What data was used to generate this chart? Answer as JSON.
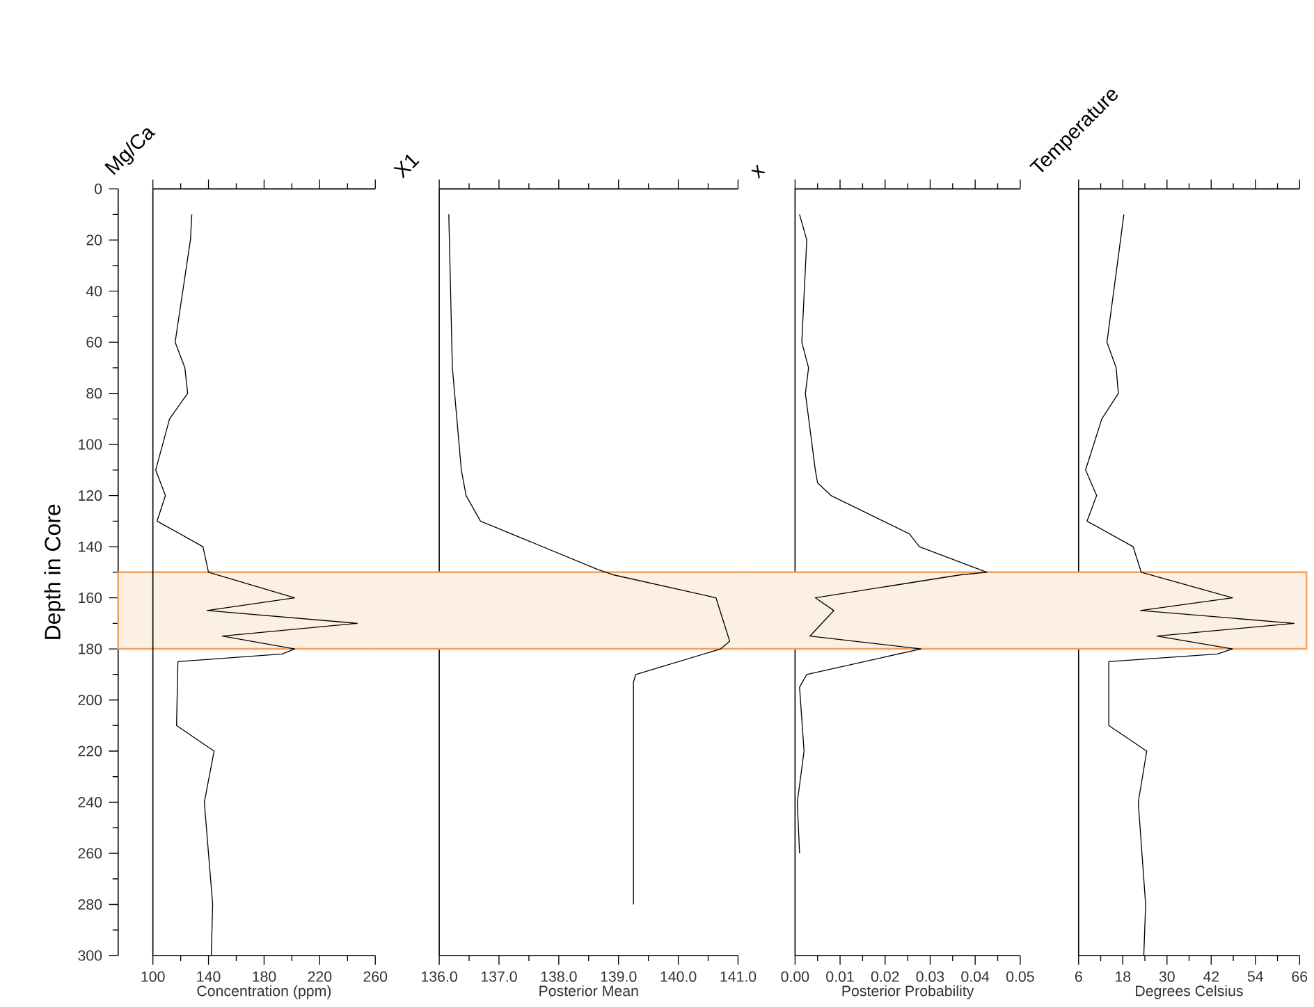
{
  "chart_data": [
    {
      "type": "line",
      "title": "Mg/Ca",
      "xlabel": "Concentration (ppm)",
      "ylabel": "Depth in Core",
      "xlim": [
        100,
        260
      ],
      "xticks": [
        100,
        140,
        180,
        220,
        260
      ],
      "ylim": [
        300,
        0
      ],
      "yticks": [
        0,
        20,
        40,
        60,
        80,
        100,
        120,
        140,
        160,
        180,
        200,
        220,
        240,
        260,
        280,
        300
      ],
      "series": [
        {
          "color": "#000000",
          "x": [
            128,
            127,
            116,
            123,
            125,
            112,
            102,
            109,
            103,
            136,
            140,
            202,
            139,
            247,
            150,
            202,
            193,
            118,
            117,
            144,
            137,
            143,
            142
          ],
          "values": [
            10,
            20,
            60,
            70,
            80,
            90,
            110,
            120,
            130,
            140,
            150,
            160,
            165,
            170,
            175,
            180,
            182,
            185,
            210,
            220,
            240,
            280,
            300
          ]
        }
      ],
      "bands": [
        {
          "axis": "y",
          "from": 150,
          "to": 180,
          "color": "#fcefe4"
        }
      ]
    },
    {
      "type": "line",
      "title": "X1",
      "xlabel": "Posterior Mean",
      "tick_labels": "x",
      "xlim": [
        136,
        141
      ],
      "xticks": [
        {
          "value": 136,
          "label": "136.0"
        },
        {
          "value": 137,
          "label": "137.0"
        },
        {
          "value": 138,
          "label": "138.0"
        },
        {
          "value": 139,
          "label": "139.0"
        },
        {
          "value": 140,
          "label": "140.0"
        },
        {
          "value": 141,
          "label": "141.0"
        }
      ],
      "ylim": [
        300,
        0
      ],
      "yticks": [
        0,
        20,
        40,
        60,
        80,
        100,
        120,
        140,
        160,
        180,
        200,
        220,
        240,
        260,
        280,
        300
      ],
      "series": [
        {
          "color": "#000000",
          "x": [
            136.16,
            136.22,
            136.37,
            136.45,
            136.69,
            138.66,
            138.91,
            140.63,
            140.86,
            140.71,
            139.29,
            139.25,
            139.25
          ],
          "values": [
            10,
            70,
            110,
            120,
            130,
            149,
            151,
            160,
            177,
            180,
            190,
            193,
            280
          ]
        }
      ],
      "bands": [
        {
          "axis": "y",
          "from": 150,
          "to": 180,
          "color": "#fcefe4"
        }
      ]
    },
    {
      "type": "line",
      "title": "x",
      "xlabel": "Posterior Probability",
      "tick_labels": "x",
      "xlim": [
        0,
        0.05
      ],
      "xticks": [
        {
          "value": 0,
          "label": "0.00"
        },
        {
          "value": 0.01,
          "label": "0.01"
        },
        {
          "value": 0.02,
          "label": "0.02"
        },
        {
          "value": 0.03,
          "label": "0.03"
        },
        {
          "value": 0.04,
          "label": "0.04"
        },
        {
          "value": 0.05,
          "label": "0.05"
        }
      ],
      "ylim": [
        300,
        0
      ],
      "yticks": [
        0,
        20,
        40,
        60,
        80,
        100,
        120,
        140,
        160,
        180,
        200,
        220,
        240,
        260,
        280,
        300
      ],
      "series": [
        {
          "color": "#000000",
          "x": [
            0.001,
            0.0026,
            0.0015,
            0.003,
            0.0023,
            0.0045,
            0.005,
            0.008,
            0.0254,
            0.0276,
            0.0426,
            0.0368,
            0.0045,
            0.0086,
            0.0033,
            0.028,
            0.0026,
            0.001,
            0.002,
            0.0005,
            0.001
          ],
          "values": [
            10,
            20,
            60,
            70,
            80,
            110,
            115,
            120,
            135,
            140,
            150,
            151,
            160,
            165,
            175,
            180,
            190,
            195,
            220,
            240,
            260
          ]
        }
      ],
      "bands": [
        {
          "axis": "y",
          "from": 150,
          "to": 180,
          "color": "#fcefe4"
        }
      ]
    },
    {
      "type": "line",
      "title": "Temperature",
      "xlabel": "Degrees Celsius",
      "tick_labels": "x",
      "xlim": [
        6,
        66
      ],
      "xticks": [
        6,
        18,
        30,
        42,
        54,
        66
      ],
      "ylim": [
        300,
        0
      ],
      "yticks": [
        0,
        20,
        40,
        60,
        80,
        100,
        120,
        140,
        160,
        180,
        200,
        220,
        240,
        260,
        280,
        300
      ],
      "series": [
        {
          "color": "#000000",
          "x": [
            18.3,
            13.7,
            16.2,
            16.8,
            12.3,
            7.9,
            10.9,
            8.3,
            20.8,
            23,
            47.8,
            22.8,
            64.5,
            27.3,
            47.8,
            43.7,
            14.2,
            14.2,
            24.5,
            22.2,
            24.2,
            23.7
          ],
          "values": [
            10,
            60,
            70,
            80,
            90,
            110,
            120,
            130,
            140,
            150,
            160,
            165,
            170,
            175,
            180,
            182,
            185,
            210,
            220,
            240,
            280,
            300
          ]
        }
      ],
      "bands": [
        {
          "axis": "y",
          "from": 150,
          "to": 180,
          "color": "#fcefe4"
        }
      ]
    }
  ]
}
